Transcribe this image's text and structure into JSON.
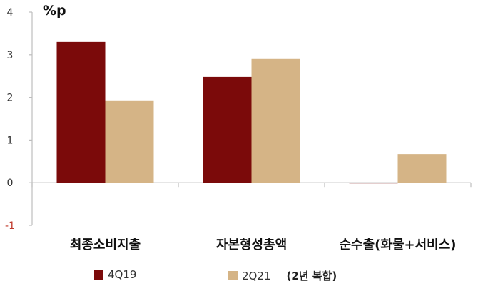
{
  "chart_data": {
    "type": "bar",
    "unit_label": "%p",
    "categories": [
      "최종소비지출",
      "자본형성총액",
      "순수출(화물+서비스)"
    ],
    "series": [
      {
        "name": "4Q19",
        "values": [
          3.3,
          2.48,
          0.0
        ],
        "color": "#7b0a0a"
      },
      {
        "name": "2Q21",
        "values": [
          1.93,
          2.9,
          0.67
        ],
        "color": "#d5b486"
      }
    ],
    "ylim": [
      -1,
      4
    ],
    "yticks": [
      4,
      3,
      2,
      1,
      0,
      -1
    ],
    "ytick_labels": [
      "4",
      "3",
      "2",
      "1",
      "0",
      "-1"
    ],
    "negative_tick_color": "#c0392b",
    "legend_note": "(2년 복합)",
    "legend_position": "bottom"
  }
}
